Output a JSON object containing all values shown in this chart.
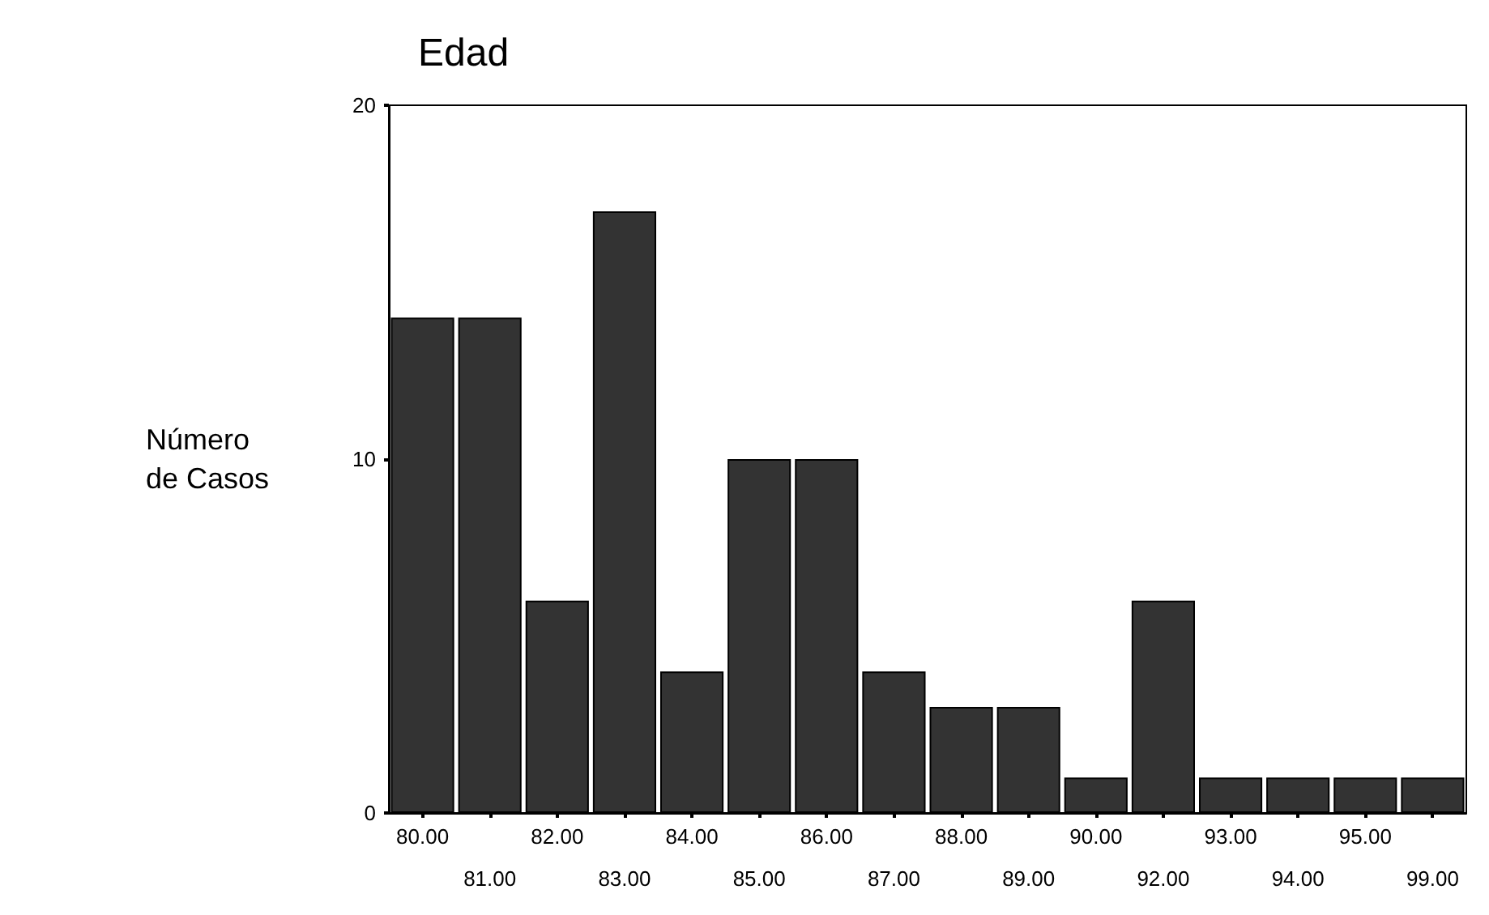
{
  "chart_data": {
    "type": "bar",
    "title": "Edad",
    "ylabel": "Número\nde Casos",
    "categories": [
      "80.00",
      "81.00",
      "82.00",
      "83.00",
      "84.00",
      "85.00",
      "86.00",
      "87.00",
      "88.00",
      "89.00",
      "90.00",
      "92.00",
      "93.00",
      "94.00",
      "95.00",
      "99.00"
    ],
    "values": [
      14,
      14,
      6,
      17,
      4,
      10,
      10,
      4,
      3,
      3,
      1,
      6,
      1,
      1,
      1,
      1
    ],
    "color": "#333333",
    "ylim": [
      0,
      20
    ],
    "yticks": [
      0,
      10,
      20
    ],
    "grid": false
  }
}
